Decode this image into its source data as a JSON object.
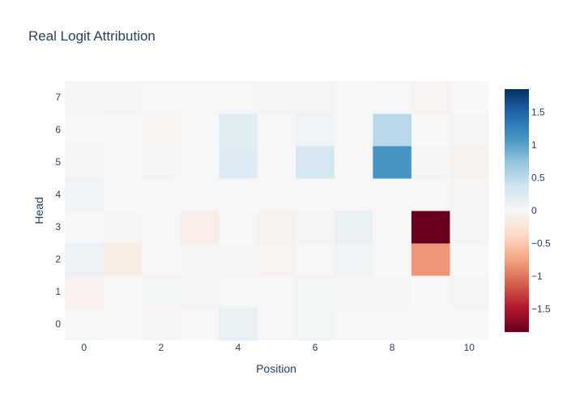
{
  "chart_data": {
    "type": "heatmap",
    "title": "Real Logit Attribution",
    "xlabel": "Position",
    "ylabel": "Head",
    "x": [
      0,
      1,
      2,
      3,
      4,
      5,
      6,
      7,
      8,
      9,
      10
    ],
    "y": [
      0,
      1,
      2,
      3,
      4,
      5,
      6,
      7
    ],
    "x_ticks": [
      "0",
      "2",
      "4",
      "6",
      "8",
      "10"
    ],
    "y_ticks": [
      "0",
      "1",
      "2",
      "3",
      "4",
      "5",
      "6",
      "7"
    ],
    "z": [
      [
        0.02,
        0.0,
        -0.03,
        0.0,
        0.15,
        0.02,
        0.05,
        0.02,
        0.02,
        0.0,
        0.0
      ],
      [
        -0.08,
        0.0,
        0.05,
        0.03,
        0.02,
        0.02,
        0.05,
        0.04,
        -0.02,
        0.0,
        -0.02
      ],
      [
        0.12,
        -0.15,
        0.0,
        -0.03,
        -0.02,
        -0.05,
        0.0,
        0.06,
        0.0,
        -0.82,
        0.0
      ],
      [
        0.0,
        -0.03,
        0.0,
        -0.12,
        0.0,
        -0.06,
        -0.02,
        0.15,
        -0.01,
        -1.85,
        0.04
      ],
      [
        0.08,
        0.0,
        0.0,
        0.0,
        0.0,
        0.0,
        0.0,
        0.0,
        0.0,
        0.0,
        -0.03
      ],
      [
        -0.02,
        0.0,
        -0.03,
        0.0,
        0.22,
        0.0,
        0.33,
        0.0,
        1.1,
        0.04,
        -0.06
      ],
      [
        0.02,
        0.0,
        -0.04,
        0.0,
        0.2,
        0.0,
        0.08,
        0.0,
        0.52,
        0.0,
        -0.02
      ],
      [
        0.03,
        -0.02,
        0.02,
        0.02,
        0.02,
        -0.03,
        -0.03,
        0.0,
        0.02,
        -0.05,
        0.0
      ]
    ],
    "zrange": [
      -1.85,
      1.85
    ],
    "colorscale": "RdBu",
    "colorbar_ticks": [
      "1.5",
      "1",
      "0.5",
      "0",
      "−0.5",
      "−1",
      "−1.5"
    ],
    "colorbar_values": [
      1.5,
      1,
      0.5,
      0,
      -0.5,
      -1,
      -1.5
    ]
  },
  "colors": {
    "text": "#2a3f5f",
    "scale_stops": [
      "#67001f",
      "#b2182b",
      "#d6604d",
      "#f4a582",
      "#fddbc7",
      "#f7f7f7",
      "#d1e5f0",
      "#92c5de",
      "#4393c3",
      "#2166ac",
      "#053061"
    ]
  }
}
